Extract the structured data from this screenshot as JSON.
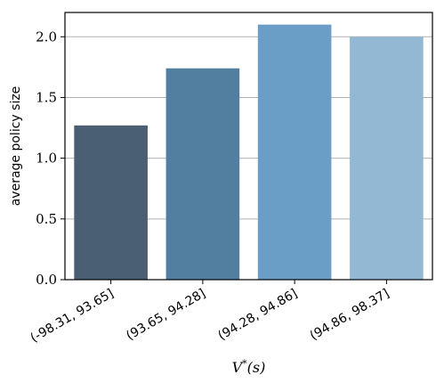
{
  "chart_data": {
    "type": "bar",
    "categories": [
      "(-98.31, 93.65]",
      "(93.65, 94.28]",
      "(94.28, 94.86]",
      "(94.86, 98.37]"
    ],
    "values": [
      1.27,
      1.74,
      2.1,
      2.0
    ],
    "colors": [
      "#4a5f71",
      "#527f9f",
      "#6a9ec6",
      "#92b8d3"
    ],
    "title": "",
    "xlabel": "V*(s)",
    "ylabel": "average policy size",
    "ylim": [
      0,
      2.2
    ],
    "yticks": [
      0.0,
      0.5,
      1.0,
      1.5,
      2.0
    ],
    "ytick_labels": [
      "0.0",
      "0.5",
      "1.0",
      "1.5",
      "2.0"
    ],
    "grid": "horizontal",
    "legend": "none"
  }
}
